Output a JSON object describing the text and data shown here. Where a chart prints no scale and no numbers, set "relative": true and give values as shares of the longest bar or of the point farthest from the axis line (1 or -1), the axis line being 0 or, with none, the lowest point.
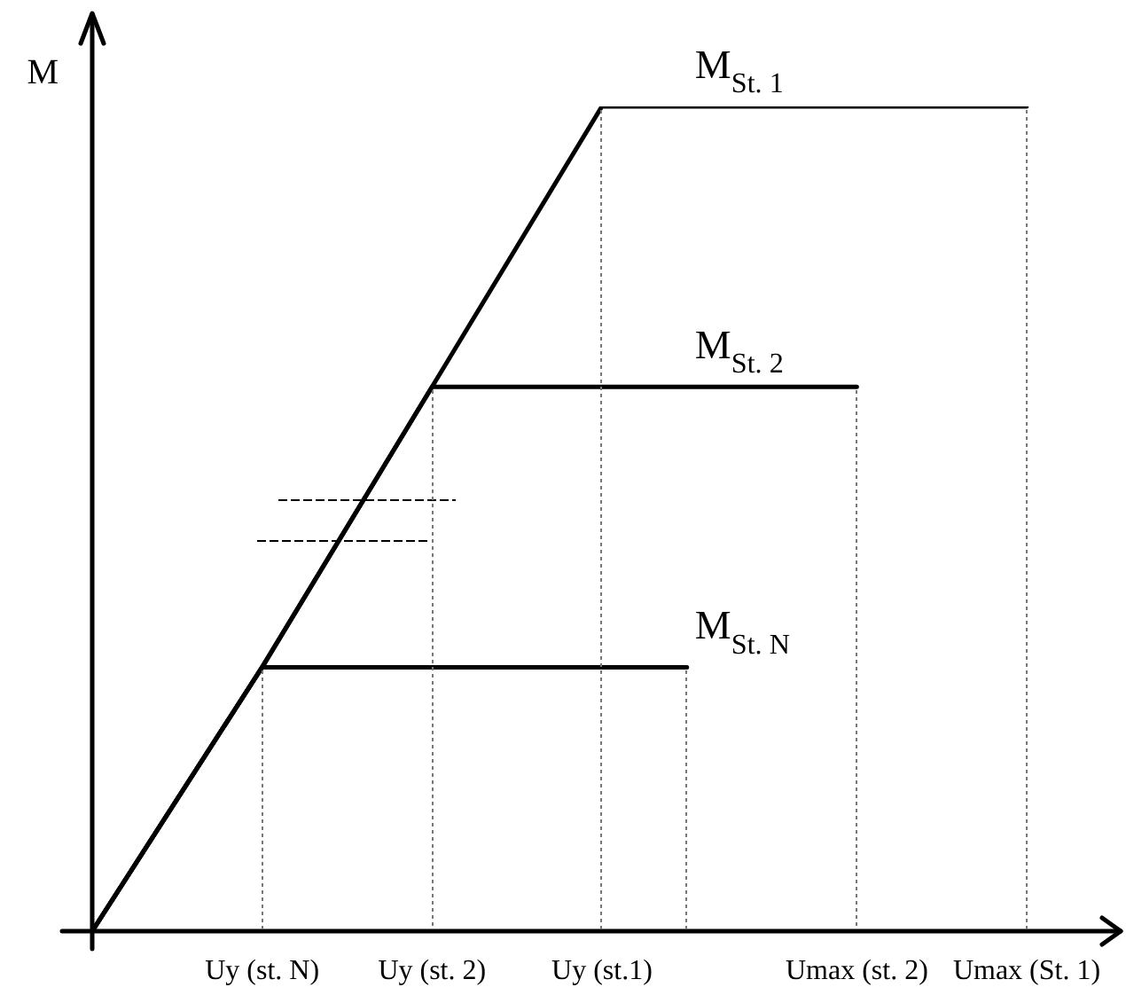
{
  "chart_data": {
    "type": "line",
    "ylabel": "M",
    "relative": true,
    "marker": "none",
    "line_style": "solid",
    "categories": [
      null,
      null,
      "Uy (st. N)",
      null,
      "Uy (st. 2)",
      null,
      "Uy (st.1)",
      null,
      null,
      "Umax (st. 2)",
      null,
      "Umax (St. 1)"
    ],
    "series": [
      {
        "name": "M$_{St. 1}$",
        "color": "#000000",
        "values": [
          0,
          null,
          0.32,
          null,
          0.66,
          null,
          1,
          null,
          null,
          null,
          null,
          1
        ]
      },
      {
        "name": "M$_{St. 2}$",
        "color": "#000000",
        "values": [
          0,
          null,
          0.32,
          null,
          0.66,
          null,
          null,
          null,
          null,
          0.66,
          null,
          null
        ]
      },
      {
        "name": "M$_{St. N}$",
        "color": "#000000",
        "values": [
          0,
          null,
          0.32,
          null,
          null,
          null,
          null,
          0.32,
          null,
          null,
          null,
          null
        ]
      }
    ]
  }
}
